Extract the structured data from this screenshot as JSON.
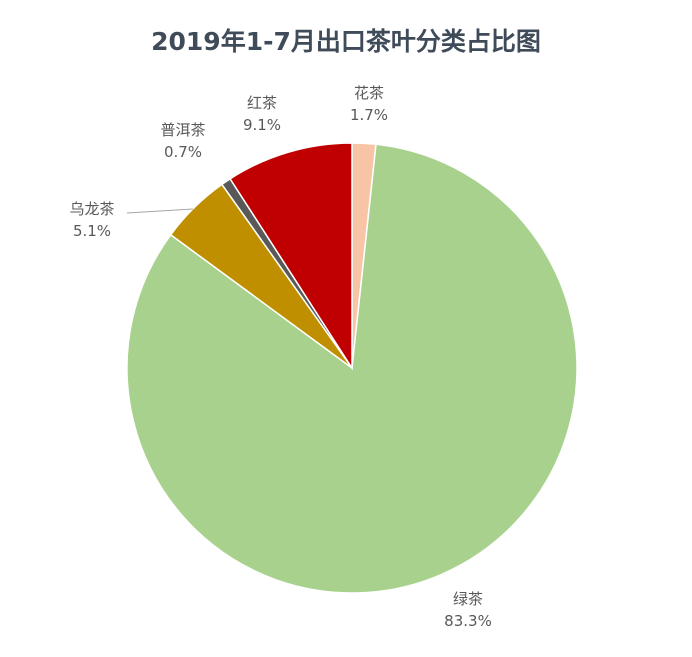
{
  "chart_data": {
    "type": "pie",
    "title": "2019年1-7月出口茶叶分类占比图",
    "start": "12 o'clock, clockwise",
    "slices": [
      {
        "label": "花茶",
        "value": 1.7,
        "value_label": "1.7%",
        "color": "#f8c4a6"
      },
      {
        "label": "绿茶",
        "value": 83.3,
        "value_label": "83.3%",
        "color": "#a9d18e"
      },
      {
        "label": "乌龙茶",
        "value": 5.1,
        "value_label": "5.1%",
        "color": "#bf8f00"
      },
      {
        "label": "普洱茶",
        "value": 0.7,
        "value_label": "0.7%",
        "color": "#595959"
      },
      {
        "label": "红茶",
        "value": 9.1,
        "value_label": "9.1%",
        "color": "#c00000"
      }
    ]
  }
}
